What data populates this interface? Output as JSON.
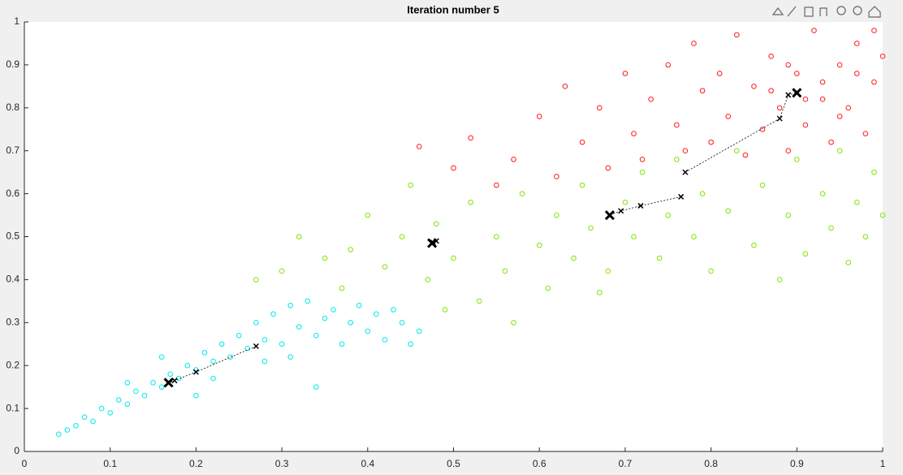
{
  "chart_data": {
    "type": "scatter",
    "title": "Iteration number 5",
    "xlim": [
      0,
      1
    ],
    "ylim": [
      0,
      1
    ],
    "xticks": [
      0,
      0.1,
      0.2,
      0.3,
      0.4,
      0.5,
      0.6,
      0.7,
      0.8,
      0.9,
      1
    ],
    "yticks": [
      0,
      0.1,
      0.2,
      0.3,
      0.4,
      0.5,
      0.6,
      0.7,
      0.8,
      0.9,
      1
    ],
    "series": [
      {
        "color": "#00e8f0",
        "x": [
          0.04,
          0.05,
          0.06,
          0.07,
          0.08,
          0.09,
          0.1,
          0.11,
          0.12,
          0.13,
          0.14,
          0.15,
          0.16,
          0.17,
          0.18,
          0.16,
          0.19,
          0.2,
          0.21,
          0.22,
          0.23,
          0.24,
          0.25,
          0.26,
          0.27,
          0.28,
          0.29,
          0.3,
          0.31,
          0.32,
          0.33,
          0.34,
          0.35,
          0.36,
          0.37,
          0.38,
          0.39,
          0.4,
          0.41,
          0.42,
          0.43,
          0.44,
          0.45,
          0.46,
          0.34,
          0.31,
          0.2,
          0.12,
          0.28,
          0.22
        ],
        "y": [
          0.04,
          0.05,
          0.06,
          0.08,
          0.07,
          0.1,
          0.09,
          0.12,
          0.11,
          0.14,
          0.13,
          0.16,
          0.15,
          0.18,
          0.17,
          0.22,
          0.2,
          0.19,
          0.23,
          0.21,
          0.25,
          0.22,
          0.27,
          0.24,
          0.3,
          0.26,
          0.32,
          0.25,
          0.34,
          0.29,
          0.35,
          0.27,
          0.31,
          0.33,
          0.25,
          0.3,
          0.34,
          0.28,
          0.32,
          0.26,
          0.33,
          0.3,
          0.25,
          0.28,
          0.15,
          0.22,
          0.13,
          0.16,
          0.21,
          0.17
        ]
      },
      {
        "color": "#7fe600",
        "x": [
          0.27,
          0.3,
          0.32,
          0.35,
          0.37,
          0.38,
          0.4,
          0.42,
          0.44,
          0.45,
          0.47,
          0.48,
          0.5,
          0.52,
          0.53,
          0.55,
          0.56,
          0.58,
          0.6,
          0.61,
          0.62,
          0.64,
          0.65,
          0.66,
          0.68,
          0.7,
          0.71,
          0.72,
          0.74,
          0.75,
          0.76,
          0.78,
          0.79,
          0.8,
          0.82,
          0.83,
          0.85,
          0.86,
          0.88,
          0.89,
          0.9,
          0.91,
          0.93,
          0.94,
          0.95,
          0.96,
          0.97,
          0.98,
          0.99,
          1.0,
          0.57,
          0.67,
          0.49
        ],
        "y": [
          0.4,
          0.42,
          0.5,
          0.45,
          0.38,
          0.47,
          0.55,
          0.43,
          0.5,
          0.62,
          0.4,
          0.53,
          0.45,
          0.58,
          0.35,
          0.5,
          0.42,
          0.6,
          0.48,
          0.38,
          0.55,
          0.45,
          0.62,
          0.52,
          0.42,
          0.58,
          0.5,
          0.65,
          0.45,
          0.55,
          0.68,
          0.5,
          0.6,
          0.42,
          0.56,
          0.7,
          0.48,
          0.62,
          0.4,
          0.55,
          0.68,
          0.46,
          0.6,
          0.52,
          0.7,
          0.44,
          0.58,
          0.5,
          0.65,
          0.55,
          0.3,
          0.37,
          0.33
        ]
      },
      {
        "color": "#ff1a1a",
        "x": [
          0.46,
          0.5,
          0.52,
          0.55,
          0.57,
          0.6,
          0.62,
          0.63,
          0.65,
          0.67,
          0.68,
          0.7,
          0.71,
          0.72,
          0.73,
          0.75,
          0.76,
          0.77,
          0.78,
          0.79,
          0.8,
          0.81,
          0.82,
          0.83,
          0.84,
          0.85,
          0.86,
          0.87,
          0.88,
          0.89,
          0.9,
          0.91,
          0.92,
          0.93,
          0.94,
          0.95,
          0.96,
          0.97,
          0.98,
          0.99,
          1.0,
          0.99,
          0.97,
          0.95,
          0.93,
          0.91,
          0.89,
          0.87
        ],
        "y": [
          0.71,
          0.66,
          0.73,
          0.62,
          0.68,
          0.78,
          0.64,
          0.85,
          0.72,
          0.8,
          0.66,
          0.88,
          0.74,
          0.68,
          0.82,
          0.9,
          0.76,
          0.7,
          0.95,
          0.84,
          0.72,
          0.88,
          0.78,
          0.97,
          0.69,
          0.85,
          0.75,
          0.92,
          0.8,
          0.7,
          0.88,
          0.76,
          0.98,
          0.82,
          0.72,
          0.9,
          0.8,
          0.95,
          0.74,
          0.86,
          0.92,
          0.98,
          0.88,
          0.78,
          0.86,
          0.82,
          0.9,
          0.84
        ]
      }
    ],
    "centroids": [
      {
        "x": [
          0.27,
          0.2,
          0.175,
          0.168
        ],
        "y": [
          0.245,
          0.185,
          0.165,
          0.16
        ]
      },
      {
        "x": [
          0.48,
          0.476,
          0.475
        ],
        "y": [
          0.49,
          0.487,
          0.485
        ]
      },
      {
        "x": [
          0.765,
          0.718,
          0.695,
          0.682
        ],
        "y": [
          0.593,
          0.572,
          0.56,
          0.55
        ]
      },
      {
        "x": [
          0.77,
          0.88,
          0.89,
          0.9
        ],
        "y": [
          0.65,
          0.775,
          0.83,
          0.835
        ]
      }
    ]
  }
}
